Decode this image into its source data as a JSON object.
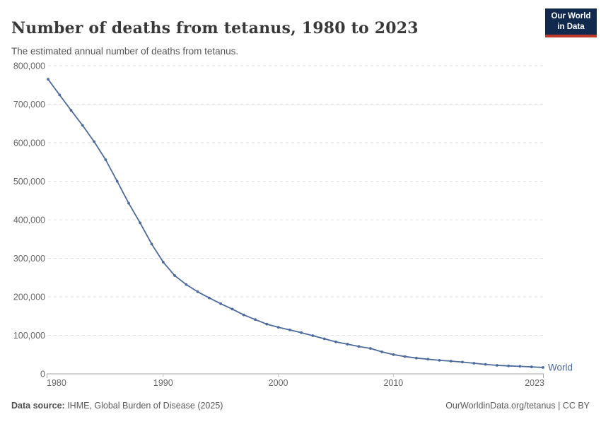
{
  "header": {
    "title": "Number of deaths from tetanus, 1980 to 2023",
    "subtitle": "The estimated annual number of deaths from tetanus."
  },
  "logo": {
    "line1": "Our World",
    "line2": "in Data",
    "bg_color": "#12294e",
    "bar_color": "#c0392b"
  },
  "chart_data": {
    "type": "line",
    "title": "Number of deaths from tetanus, 1980 to 2023",
    "xlabel": "",
    "ylabel": "",
    "xlim": [
      1980,
      2023
    ],
    "ylim": [
      0,
      800000
    ],
    "grid": "horizontal-dashed",
    "legend_position": "end-of-line",
    "xticks": [
      1980,
      1990,
      2000,
      2010,
      2023
    ],
    "yticks": [
      0,
      100000,
      200000,
      300000,
      400000,
      500000,
      600000,
      700000,
      800000
    ],
    "x": [
      1980,
      1981,
      1982,
      1983,
      1984,
      1985,
      1986,
      1987,
      1988,
      1989,
      1990,
      1991,
      1992,
      1993,
      1994,
      1995,
      1996,
      1997,
      1998,
      1999,
      2000,
      2001,
      2002,
      2003,
      2004,
      2005,
      2006,
      2007,
      2008,
      2009,
      2010,
      2011,
      2012,
      2013,
      2014,
      2015,
      2016,
      2017,
      2018,
      2019,
      2020,
      2021,
      2022,
      2023
    ],
    "series": [
      {
        "name": "World",
        "color": "#4c6a9c",
        "values": [
          765000,
          724000,
          684000,
          645000,
          603000,
          556000,
          500000,
          443000,
          392000,
          337000,
          290000,
          255000,
          232000,
          213000,
          197000,
          182000,
          168000,
          153000,
          141000,
          129000,
          121000,
          114000,
          107000,
          99000,
          91000,
          83000,
          77000,
          71000,
          66000,
          57000,
          50000,
          45000,
          41000,
          38000,
          35000,
          33000,
          30500,
          27500,
          24500,
          22000,
          20500,
          19500,
          18000,
          16500
        ]
      }
    ],
    "colors": {
      "gridline": "#e2e2e2",
      "axis": "#a6a6a6",
      "tick": "#c2c2c2",
      "tick_label": "#666666"
    }
  },
  "footer": {
    "source_label": "Data source:",
    "source_text": " IHME, Global Burden of Disease (2025)",
    "link_text": "OurWorldinData.org/tetanus | CC BY"
  }
}
